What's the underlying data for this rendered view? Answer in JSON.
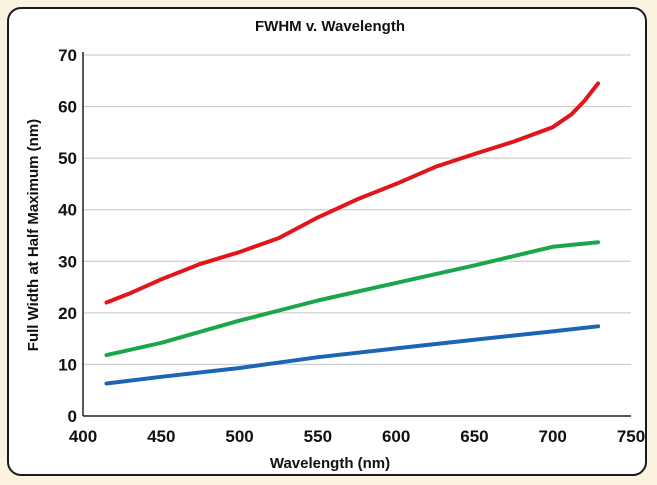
{
  "chart_data": {
    "type": "line",
    "title": "FWHM v. Wavelength",
    "xlabel": "Wavelength (nm)",
    "ylabel": "Full Width at Half Maximum (nm)",
    "xlim": [
      400,
      750
    ],
    "ylim": [
      0,
      70
    ],
    "xticks": [
      400,
      450,
      500,
      550,
      600,
      650,
      700,
      750
    ],
    "yticks": [
      0,
      10,
      20,
      30,
      40,
      50,
      60,
      70
    ],
    "grid": "horizontal",
    "series": [
      {
        "color": "#e3151b",
        "x": [
          415,
          430,
          450,
          475,
          500,
          525,
          550,
          575,
          600,
          625,
          650,
          675,
          700,
          712,
          720,
          729
        ],
        "y": [
          22,
          23.8,
          26.5,
          29.5,
          31.8,
          34.5,
          38.5,
          42,
          45,
          48.3,
          50.8,
          53.2,
          56,
          58.5,
          61,
          64.5
        ]
      },
      {
        "color": "#1aa64a",
        "x": [
          415,
          450,
          500,
          550,
          600,
          650,
          700,
          729
        ],
        "y": [
          11.8,
          14.2,
          18.5,
          22.4,
          25.8,
          29.2,
          32.8,
          33.7
        ]
      },
      {
        "color": "#1e64b4",
        "x": [
          415,
          450,
          500,
          550,
          600,
          650,
          700,
          729
        ],
        "y": [
          6.3,
          7.6,
          9.3,
          11.4,
          13.1,
          14.8,
          16.4,
          17.4
        ]
      }
    ]
  }
}
